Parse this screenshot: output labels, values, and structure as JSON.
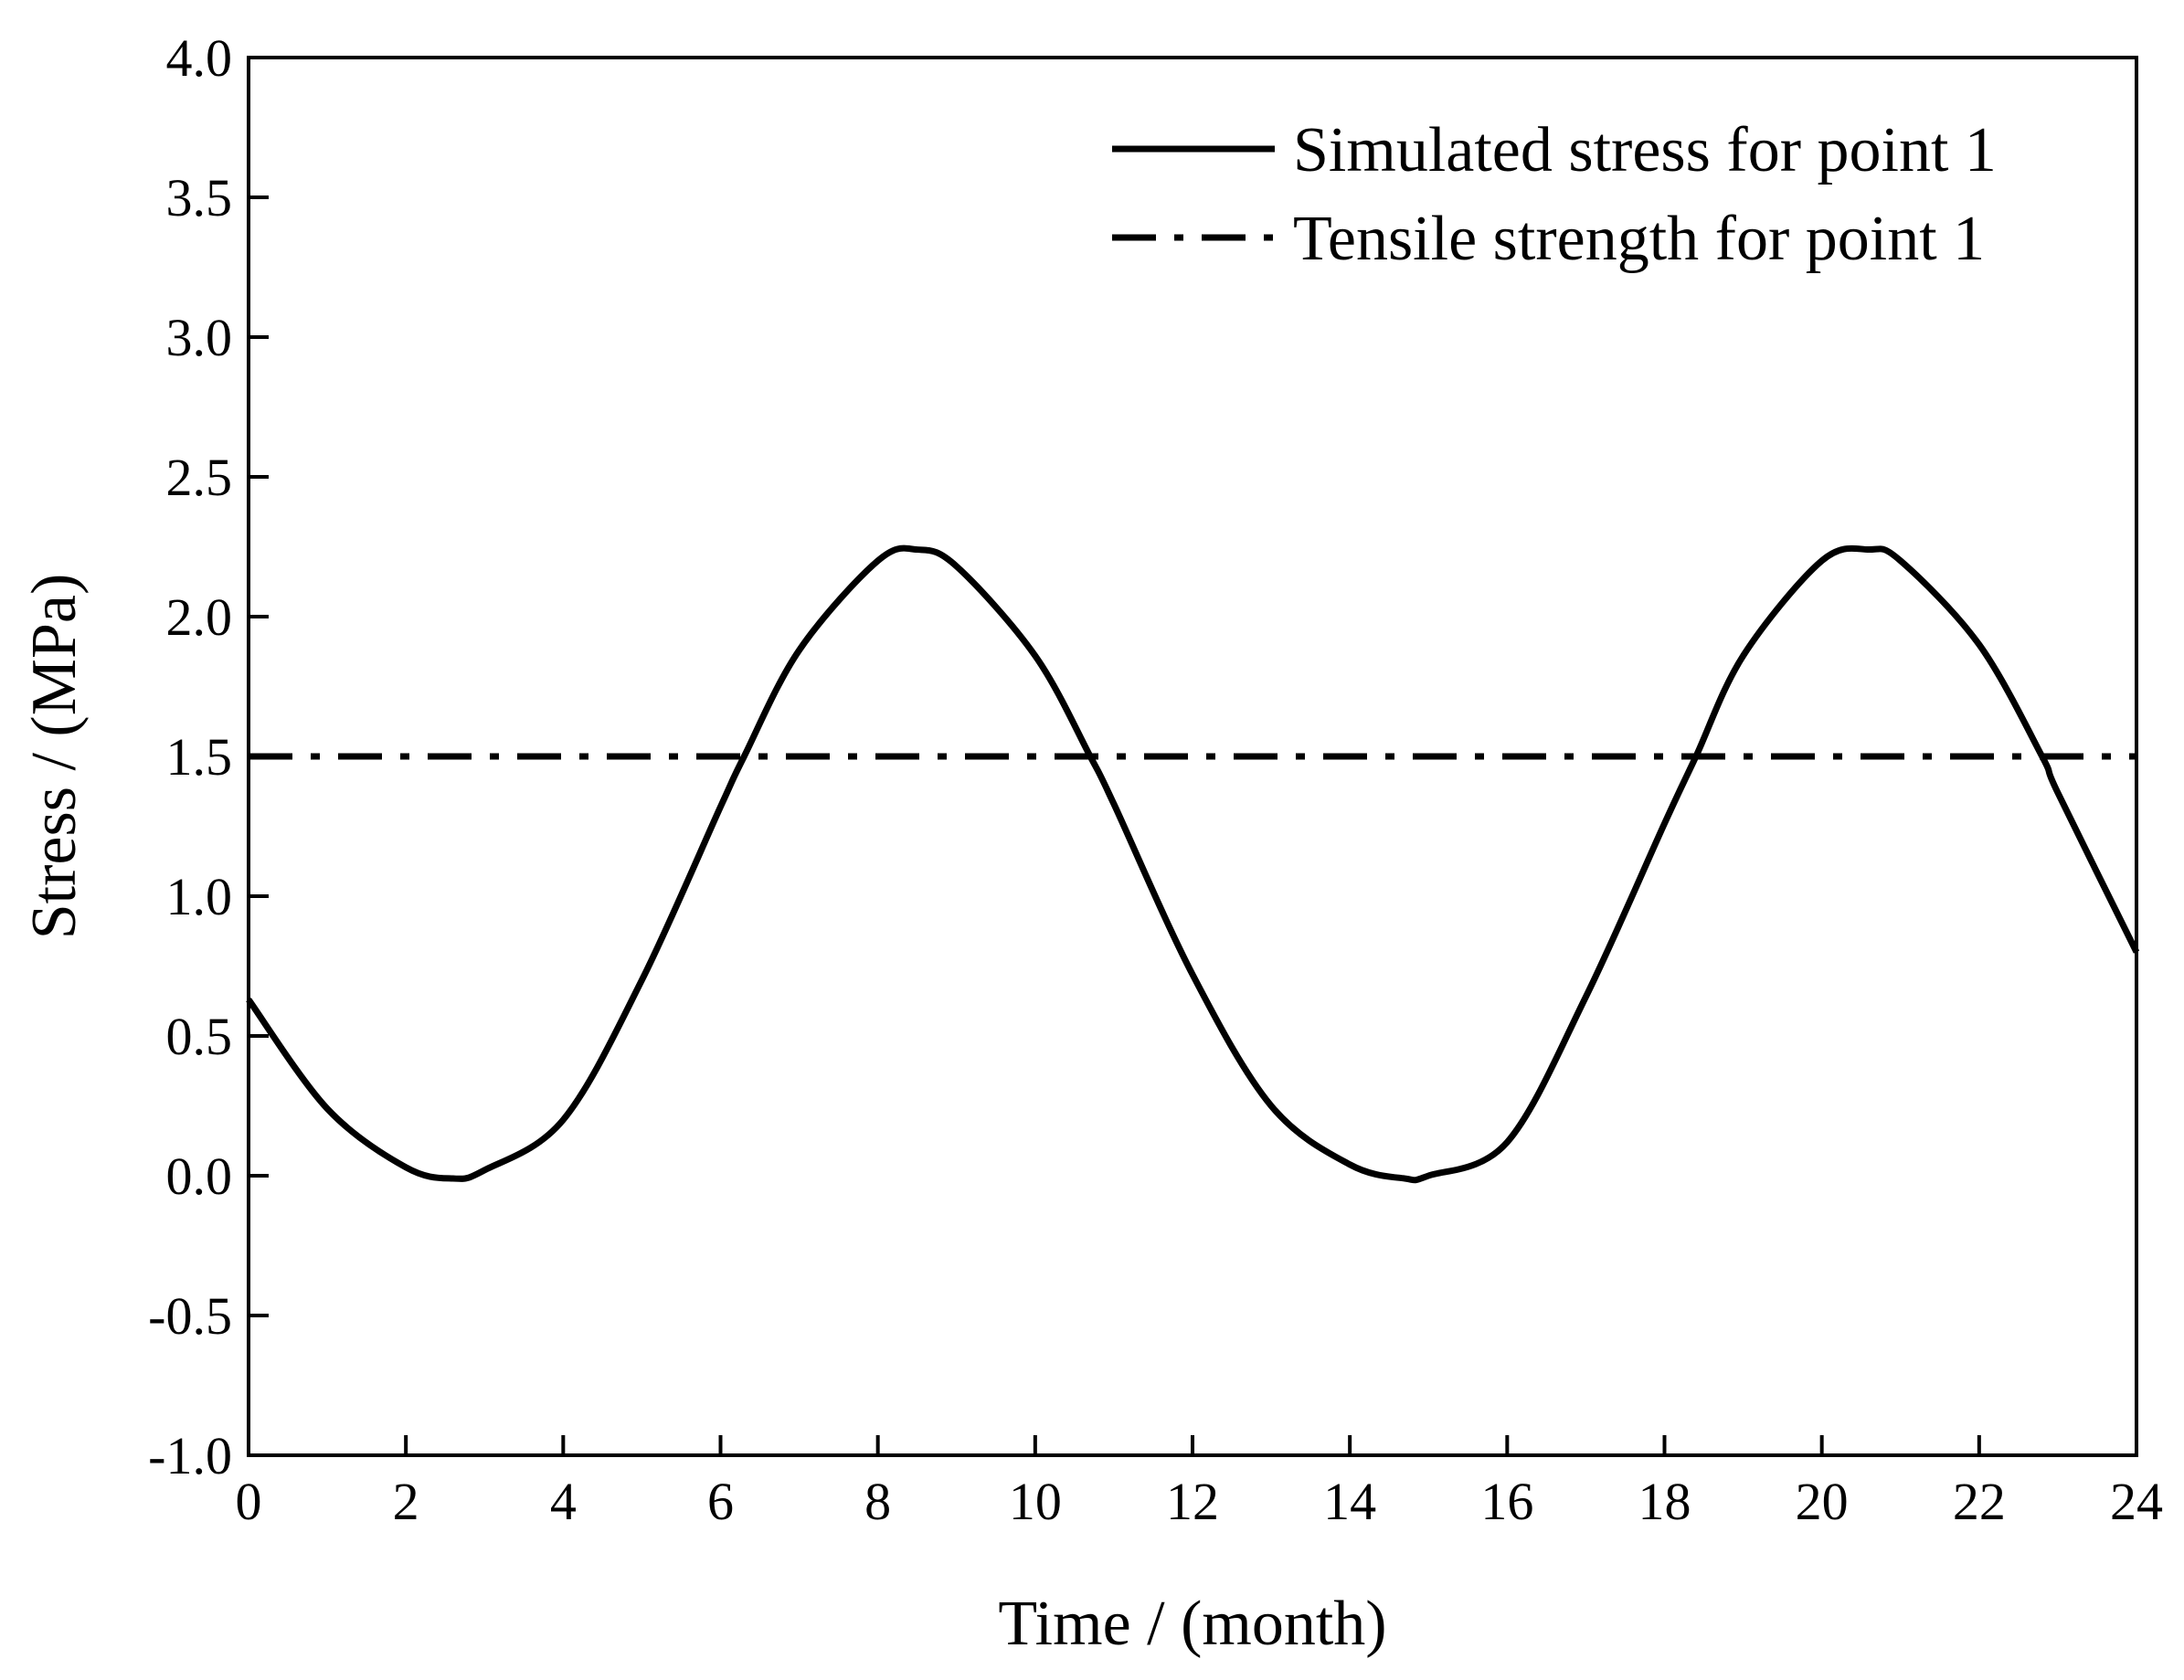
{
  "chart_data": {
    "type": "line",
    "title": "",
    "xlabel": "Time / (month)",
    "ylabel": "Stress / (MPa)",
    "xlim": [
      0,
      24
    ],
    "ylim": [
      -1.0,
      4.0
    ],
    "xticks": [
      0,
      2,
      4,
      6,
      8,
      10,
      12,
      14,
      16,
      18,
      20,
      22,
      24
    ],
    "xtick_labels": [
      "0",
      "2",
      "4",
      "6",
      "8",
      "10",
      "12",
      "14",
      "16",
      "18",
      "20",
      "22",
      "24"
    ],
    "yticks": [
      -1.0,
      -0.5,
      0.0,
      0.5,
      1.0,
      1.5,
      2.0,
      2.5,
      3.0,
      3.5,
      4.0
    ],
    "ytick_labels": [
      "-1.0",
      "-0.5",
      "0.0",
      "0.5",
      "1.0",
      "1.5",
      "2.0",
      "2.5",
      "3.0",
      "3.5",
      "4.0"
    ],
    "grid": false,
    "legend_position": "top-right",
    "series": [
      {
        "name": "Simulated stress for point 1",
        "style": "solid",
        "color": "#000000",
        "x": [
          0,
          1,
          2,
          2.6,
          3,
          4,
          5,
          6,
          6.3,
          7,
          8,
          8.5,
          9,
          10,
          10.7,
          11,
          12,
          13,
          14,
          14.7,
          15,
          16,
          17,
          18,
          18.4,
          19,
          20,
          20.6,
          21,
          22,
          22.8,
          23,
          24
        ],
        "y": [
          0.63,
          0.24,
          0.03,
          -0.01,
          0.02,
          0.2,
          0.7,
          1.32,
          1.5,
          1.88,
          2.2,
          2.24,
          2.18,
          1.86,
          1.5,
          1.33,
          0.72,
          0.25,
          0.04,
          -0.01,
          0.0,
          0.12,
          0.64,
          1.26,
          1.5,
          1.86,
          2.2,
          2.24,
          2.2,
          1.9,
          1.5,
          1.37,
          0.8
        ]
      },
      {
        "name": "Tensile strength for point 1",
        "style": "dash-dot",
        "color": "#000000",
        "x": [
          0,
          24
        ],
        "y": [
          1.5,
          1.5
        ]
      }
    ]
  }
}
